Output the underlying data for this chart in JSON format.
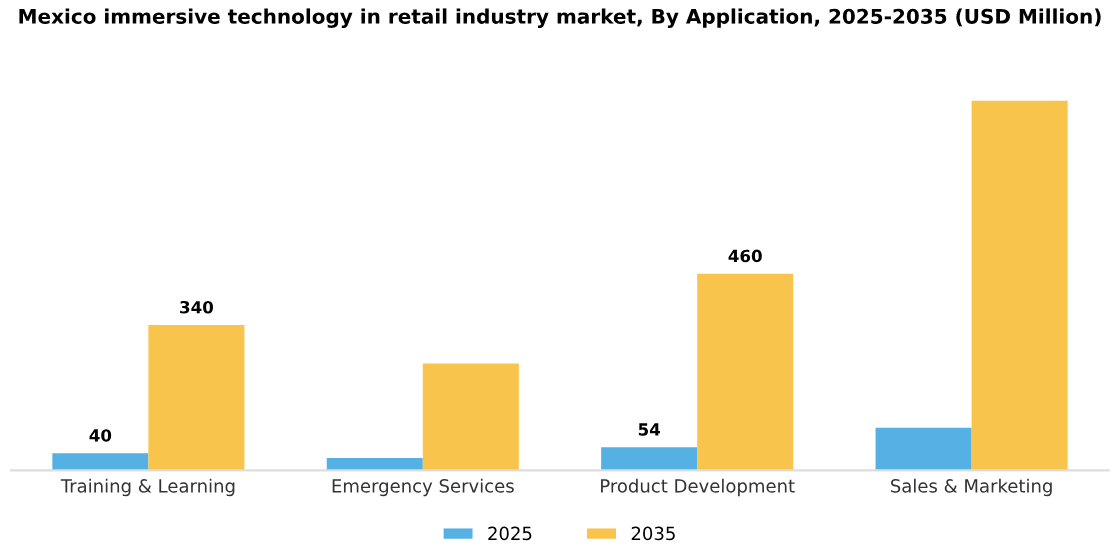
{
  "chart_data": {
    "type": "bar",
    "title": "Mexico immersive technology in retail industry market, By Application, 2025-2035 (USD Million)",
    "categories": [
      "Training & Learning",
      "Emergency Services",
      "Product Development",
      "Sales & Marketing"
    ],
    "series": [
      {
        "name": "2025",
        "color": "#55b0e4",
        "values": [
          40,
          29,
          54,
          100
        ],
        "value_labels": [
          "40",
          null,
          "54",
          null
        ]
      },
      {
        "name": "2035",
        "color": "#f8c44c",
        "values": [
          340,
          250,
          460,
          865
        ],
        "value_labels": [
          "340",
          null,
          "460",
          null
        ]
      }
    ],
    "legend": "bottom",
    "grid": false,
    "tick_labels": "x"
  }
}
